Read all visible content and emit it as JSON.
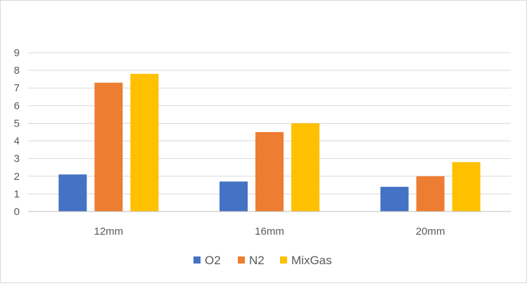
{
  "chart_data": {
    "type": "bar",
    "categories": [
      "12mm",
      "16mm",
      "20mm"
    ],
    "series": [
      {
        "name": "O2",
        "color": "#4472C4",
        "values": [
          2.1,
          1.7,
          1.4
        ]
      },
      {
        "name": "N2",
        "color": "#ED7D31",
        "values": [
          7.3,
          4.5,
          2.0
        ]
      },
      {
        "name": "MixGas",
        "color": "#FFC000",
        "values": [
          7.8,
          5.0,
          2.8
        ]
      }
    ],
    "yticks": [
      "0",
      "1",
      "2",
      "3",
      "4",
      "5",
      "6",
      "7",
      "8",
      "9"
    ],
    "ylim": [
      0,
      9
    ],
    "grid": true,
    "legend": "bottom",
    "gridline_color": "#d9d9d9",
    "axis_color": "#bfbfbf",
    "text_color": "#595959"
  }
}
